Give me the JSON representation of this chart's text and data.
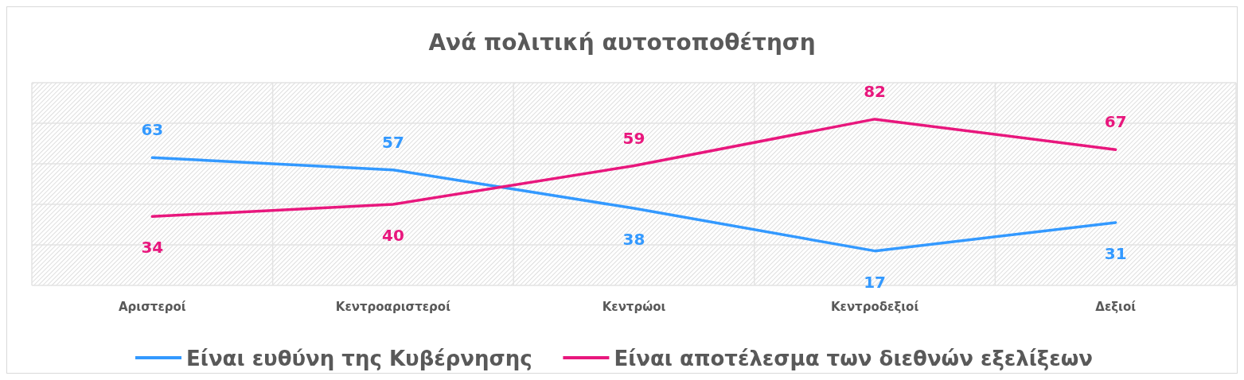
{
  "chart_data": {
    "type": "line",
    "title": "Ανά πολιτική αυτοτοποθέτηση",
    "categories": [
      "Αριστεροί",
      "Κεντροαριστεροί",
      "Κεντρώοι",
      "Κεντροδεξιοί",
      "Δεξιοί"
    ],
    "series": [
      {
        "name": "Είναι ευθύνη της Κυβέρνησης",
        "color": "#3399ff",
        "values": [
          63,
          57,
          38,
          17,
          31
        ]
      },
      {
        "name": "Είναι αποτέλεσμα των διεθνών εξελίξεων",
        "color": "#e8177d",
        "values": [
          34,
          40,
          59,
          82,
          67
        ]
      }
    ],
    "ylim": [
      0,
      100
    ],
    "yticks": [
      {
        "value": 0,
        "label": null
      },
      {
        "value": 20,
        "label": null
      },
      {
        "value": 40,
        "label": null
      },
      {
        "value": 60,
        "label": null
      },
      {
        "value": 80,
        "label": null
      },
      {
        "value": 100,
        "label": null
      }
    ],
    "tick_labels": "x",
    "grid": true,
    "legend": "bottom",
    "data_labels": true,
    "marker": "none",
    "line_style": "solid"
  }
}
